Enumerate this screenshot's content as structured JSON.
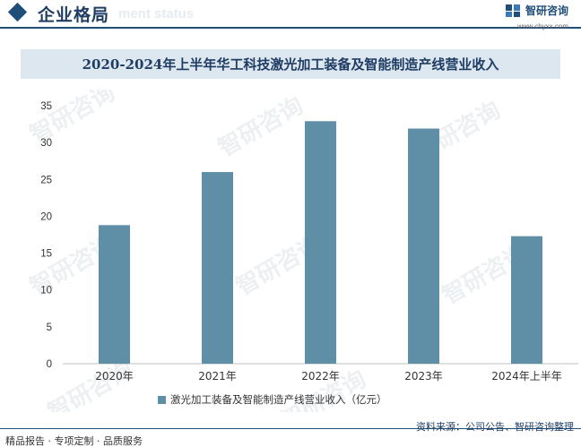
{
  "header": {
    "title": "企业格局",
    "watermark": "ment status",
    "brand_name": "智研咨询",
    "brand_url": "www.chyxx.com"
  },
  "chart_title": "2020-2024年上半年华工科技激光加工装备及智能制造产线营业收入",
  "legend_label": "激光加工装备及智能制造产线营业收入（亿元）",
  "footer": {
    "left": "精品报告 · 专项定制 · 品质服务",
    "source": "资料来源：公司公告、智研咨询整理"
  },
  "colors": {
    "bar": "#5f8fa6",
    "accent": "#1f4e79",
    "title_band": "#dde7f0"
  },
  "chart_data": {
    "type": "bar",
    "categories": [
      "2020年",
      "2021年",
      "2022年",
      "2023年",
      "2024年上半年"
    ],
    "series": [
      {
        "name": "激光加工装备及智能制造产线营业收入（亿元）",
        "values": [
          18.8,
          26.0,
          32.9,
          31.9,
          17.3
        ]
      }
    ],
    "yticks": [
      0,
      5,
      10,
      15,
      20,
      25,
      30,
      35
    ],
    "ylim": [
      0,
      35
    ],
    "grid": false
  }
}
